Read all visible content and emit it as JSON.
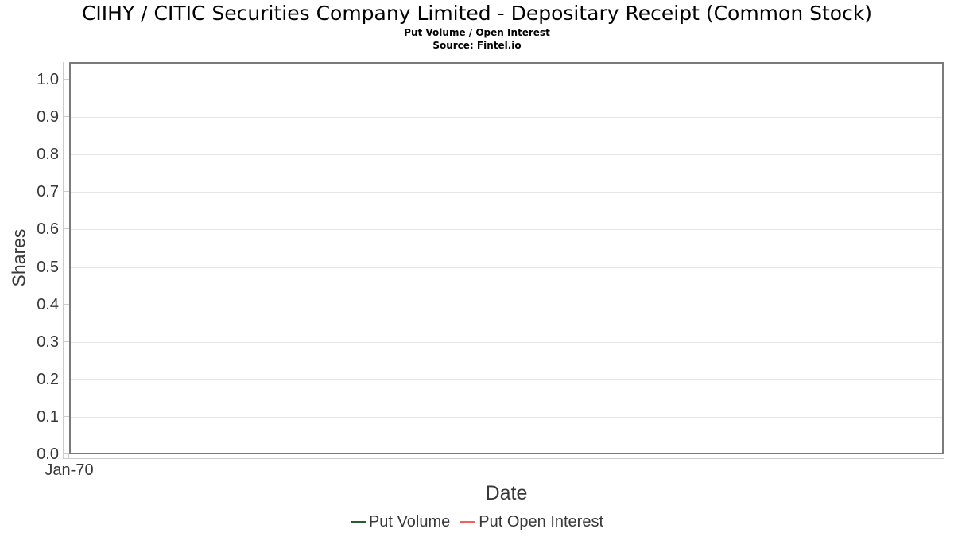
{
  "header": {
    "title": "CIIHY / CITIC Securities Company Limited - Depositary Receipt (Common Stock)",
    "subtitle": "Put Volume / Open Interest",
    "source": "Source: Fintel.io"
  },
  "axes": {
    "y_label": "Shares",
    "x_label": "Date",
    "y_ticks": [
      "1.0",
      "0.9",
      "0.8",
      "0.7",
      "0.6",
      "0.5",
      "0.4",
      "0.3",
      "0.2",
      "0.1",
      "0.0"
    ],
    "x_ticks": [
      "Jan-70"
    ]
  },
  "legend": {
    "items": [
      {
        "label": "Put Volume",
        "color": "#2b5d30"
      },
      {
        "label": "Put Open Interest",
        "color": "#f25f5f"
      }
    ]
  },
  "colors": {
    "plot_border": "#7b7b7b",
    "gridline": "#e6e6e6",
    "axis_line": "#cccccc",
    "tick_text": "#383838",
    "title_text": "#000000"
  },
  "chart_data": {
    "type": "line",
    "title": "CIIHY / CITIC Securities Company Limited - Depositary Receipt (Common Stock)",
    "subtitle": "Put Volume / Open Interest",
    "source": "Source: Fintel.io",
    "xlabel": "Date",
    "ylabel": "Shares",
    "x_tick_labels": [
      "Jan-70"
    ],
    "y_tick_labels": [
      0.0,
      0.1,
      0.2,
      0.3,
      0.4,
      0.5,
      0.6,
      0.7,
      0.8,
      0.9,
      1.0
    ],
    "ylim": [
      0.0,
      1.047
    ],
    "grid": "horizontal-only",
    "legend_position": "bottom-center",
    "series": [
      {
        "name": "Put Volume",
        "color": "#2b5d30",
        "x": [],
        "values": []
      },
      {
        "name": "Put Open Interest",
        "color": "#f25f5f",
        "x": [],
        "values": []
      }
    ]
  }
}
